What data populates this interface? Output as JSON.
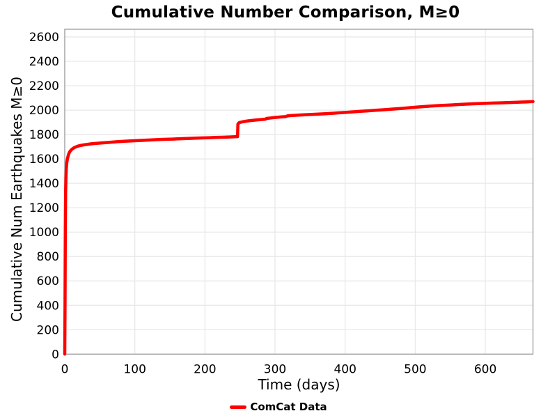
{
  "chart_data": {
    "type": "line",
    "title": "Cumulative Number Comparison, M≥0",
    "xlabel": "Time (days)",
    "ylabel": "Cumulative Num Earthquakes M≥0",
    "xlim": [
      0,
      668
    ],
    "ylim": [
      0,
      2663
    ],
    "x_ticks": [
      0,
      100,
      200,
      300,
      400,
      500,
      600
    ],
    "y_ticks": [
      0,
      200,
      400,
      600,
      800,
      1000,
      1200,
      1400,
      1600,
      1800,
      2000,
      2200,
      2400,
      2600
    ],
    "grid": true,
    "grid_color": "#e7e7e7",
    "border_color": "#9a9a9a",
    "background_color": "#ffffff",
    "legend_position": "bottom-center",
    "series": [
      {
        "name": "ComCat Data",
        "color": "#ff0000",
        "line_width": 4.5,
        "points": [
          [
            0,
            0
          ],
          [
            0.4,
            400
          ],
          [
            0.8,
            1000
          ],
          [
            1.2,
            1320
          ],
          [
            1.7,
            1450
          ],
          [
            2.2,
            1520
          ],
          [
            3,
            1572
          ],
          [
            4,
            1605
          ],
          [
            5,
            1628
          ],
          [
            6,
            1645
          ],
          [
            7,
            1657
          ],
          [
            8,
            1666
          ],
          [
            10,
            1678
          ],
          [
            12,
            1687
          ],
          [
            14,
            1694
          ],
          [
            17,
            1701
          ],
          [
            20,
            1707
          ],
          [
            24,
            1712
          ],
          [
            28,
            1716
          ],
          [
            33,
            1720
          ],
          [
            38,
            1724
          ],
          [
            44,
            1727
          ],
          [
            50,
            1730
          ],
          [
            58,
            1734
          ],
          [
            66,
            1737
          ],
          [
            75,
            1741
          ],
          [
            85,
            1745
          ],
          [
            95,
            1748
          ],
          [
            105,
            1751
          ],
          [
            115,
            1754
          ],
          [
            125,
            1756
          ],
          [
            135,
            1759
          ],
          [
            145,
            1761
          ],
          [
            155,
            1763
          ],
          [
            165,
            1766
          ],
          [
            175,
            1768
          ],
          [
            185,
            1770
          ],
          [
            195,
            1772
          ],
          [
            205,
            1774
          ],
          [
            215,
            1776
          ],
          [
            225,
            1778
          ],
          [
            235,
            1780
          ],
          [
            243,
            1782
          ],
          [
            246.5,
            1783
          ],
          [
            247,
            1885
          ],
          [
            248.5,
            1896
          ],
          [
            251,
            1901
          ],
          [
            255,
            1906
          ],
          [
            260,
            1911
          ],
          [
            266,
            1915
          ],
          [
            273,
            1919
          ],
          [
            280,
            1923
          ],
          [
            286,
            1926
          ],
          [
            288,
            1932
          ],
          [
            294,
            1936
          ],
          [
            300,
            1940
          ],
          [
            308,
            1944
          ],
          [
            315,
            1947
          ],
          [
            318,
            1953
          ],
          [
            325,
            1956
          ],
          [
            333,
            1959
          ],
          [
            342,
            1962
          ],
          [
            352,
            1965
          ],
          [
            362,
            1968
          ],
          [
            372,
            1971
          ],
          [
            382,
            1974
          ],
          [
            392,
            1978
          ],
          [
            402,
            1982
          ],
          [
            412,
            1986
          ],
          [
            422,
            1990
          ],
          [
            432,
            1994
          ],
          [
            442,
            1998
          ],
          [
            452,
            2002
          ],
          [
            462,
            2006
          ],
          [
            472,
            2010
          ],
          [
            482,
            2015
          ],
          [
            492,
            2020
          ],
          [
            502,
            2025
          ],
          [
            512,
            2029
          ],
          [
            522,
            2033
          ],
          [
            532,
            2037
          ],
          [
            542,
            2040
          ],
          [
            552,
            2043
          ],
          [
            562,
            2046
          ],
          [
            572,
            2049
          ],
          [
            582,
            2052
          ],
          [
            592,
            2054
          ],
          [
            602,
            2056
          ],
          [
            612,
            2058
          ],
          [
            622,
            2060
          ],
          [
            632,
            2062
          ],
          [
            642,
            2064
          ],
          [
            652,
            2066
          ],
          [
            660,
            2068
          ],
          [
            668,
            2070
          ]
        ]
      }
    ]
  }
}
